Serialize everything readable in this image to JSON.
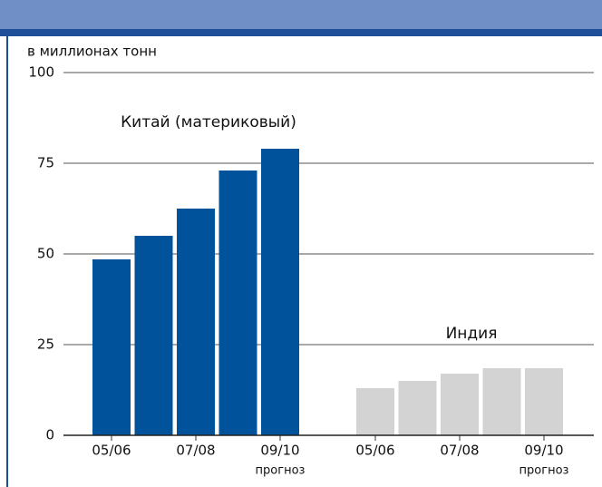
{
  "chart_data": {
    "type": "bar",
    "y_axis_label": "в миллионах тонн",
    "categories": [
      "05/06",
      null,
      "07/08",
      null,
      "09/10"
    ],
    "forecast_note": "прогноз",
    "series": [
      {
        "name": "Китай (материковый)",
        "color": "#00529b",
        "values": [
          48.5,
          55,
          62.5,
          73,
          79
        ]
      },
      {
        "name": "Индия",
        "color": "#d3d3d3",
        "values": [
          13,
          15,
          17,
          18.5,
          18.5
        ]
      }
    ],
    "ylim": [
      0,
      100
    ],
    "yticks": [
      0,
      25,
      50,
      75,
      100
    ],
    "grid": true
  }
}
